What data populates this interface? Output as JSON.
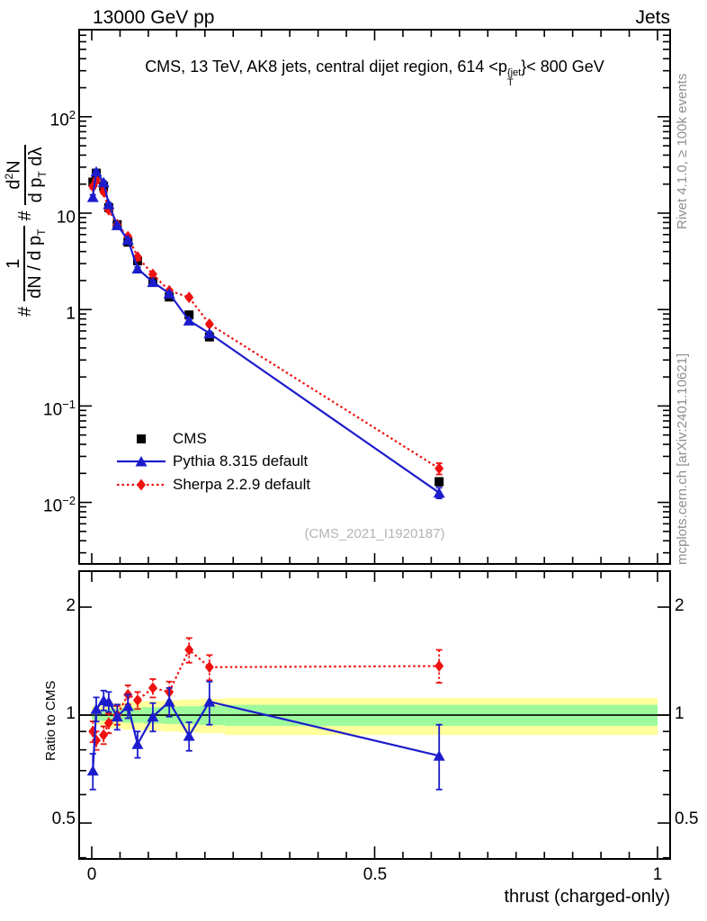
{
  "header": {
    "beam": "13000 GeV pp",
    "process": "Jets"
  },
  "title": {
    "pre": "CMS, 13 TeV, AK8 jets, central dijet region, 614 <p",
    "sup": "{jet",
    "sub": "T",
    "post": "}< 800 GeV"
  },
  "watermark": "(CMS_2021_I1920187)",
  "side_notes": {
    "top_right": "Rivet 4.1.0, ≥ 100k events",
    "bottom_right": "mcplots.cern.ch [arXiv:2401.10621]"
  },
  "ylabel_parts": {
    "hash1": "#",
    "num1": "1",
    "den1_pre": "dN / d p",
    "den1_sub": "T",
    "hash2": "#",
    "num2_pre": "d",
    "num2_sup": "2",
    "num2_post": "N",
    "den2_pre": "d p",
    "den2_sub": "T",
    "den2_post": " dλ"
  },
  "ratio_ylabel": "Ratio to CMS",
  "xlabel": "thrust (charged-only)",
  "legend": [
    {
      "label": "CMS",
      "marker": "square",
      "color": "#000000",
      "line": "none"
    },
    {
      "label": "Pythia 8.315 default",
      "marker": "triangle",
      "color": "#1c1ccd",
      "line": "solid"
    },
    {
      "label": "Sherpa 2.2.9 default",
      "marker": "diamond",
      "color": "#ee1111",
      "line": "dotted"
    }
  ],
  "colors": {
    "cms": "#000000",
    "pythia": "#1c1ccd",
    "sherpa": "#ee1111",
    "band_yellow": "#ffff9c",
    "band_green": "#9cfa9c",
    "frame": "#000000",
    "gray_text": "#8f8f8f",
    "watermark_gray": "#b4b4b4"
  },
  "axes": {
    "main": {
      "x_range": [
        0,
        1
      ],
      "y_log": true,
      "y_range": [
        0.0023,
        800
      ],
      "ytick_labels": [
        {
          "b": "10",
          "e": "2",
          "v": 100
        },
        {
          "b": "10",
          "e": "",
          "v": 10
        },
        {
          "b": "1",
          "e": "",
          "v": 1
        },
        {
          "b": "10",
          "e": "−1",
          "v": 0.1
        },
        {
          "b": "10",
          "e": "−2",
          "v": 0.01
        }
      ]
    },
    "ratio": {
      "y_log": true,
      "y_range": [
        0.397,
        2.52
      ],
      "ytick_labels": [
        {
          "t": "2",
          "v": 2
        },
        {
          "t": "1",
          "v": 1
        },
        {
          "t": "0.5",
          "v": 0.5
        }
      ],
      "xtick_labels": [
        {
          "t": "0",
          "v": 0
        },
        {
          "t": "0.5",
          "v": 0.5
        },
        {
          "t": "1",
          "v": 1
        }
      ]
    }
  },
  "chart_data": [
    {
      "type": "scatter",
      "title": "CMS, 13 TeV, AK8 jets, central dijet region, 614 < pT{jet} < 800 GeV",
      "xlabel": "thrust (charged-only)",
      "ylabel": "# 1/(dN/dpT) # d2N/(dpT dλ)",
      "xlim": [
        0,
        1
      ],
      "ylim": [
        0.0023,
        800
      ],
      "y_log": true,
      "legend_position": "center-left",
      "x": [
        0.002,
        0.008,
        0.021,
        0.03,
        0.045,
        0.064,
        0.081,
        0.108,
        0.137,
        0.172,
        0.208,
        0.614
      ],
      "series": [
        {
          "name": "CMS",
          "marker": "square",
          "line": "none",
          "values": [
            21,
            26,
            19,
            11.4,
            7.6,
            5.0,
            3.2,
            1.95,
            1.35,
            0.88,
            0.52,
            0.0164
          ],
          "yerr": [
            1.2,
            1.2,
            0.9,
            0.5,
            0.33,
            0.22,
            0.14,
            0.09,
            0.06,
            0.04,
            0.025,
            0.0015
          ]
        },
        {
          "name": "Pythia 8.315 default",
          "marker": "triangle",
          "line": "solid",
          "values": [
            14.7,
            27.0,
            20.9,
            12.4,
            7.5,
            5.3,
            2.66,
            1.93,
            1.47,
            0.77,
            0.567,
            0.0126
          ],
          "yerr": [
            0.8,
            0.9,
            0.7,
            0.4,
            0.25,
            0.17,
            0.1,
            0.07,
            0.05,
            0.03,
            0.025,
            0.0016
          ]
        },
        {
          "name": "Sherpa 2.2.9 default",
          "marker": "diamond",
          "line": "dotted",
          "values": [
            18.9,
            22.1,
            16.7,
            10.8,
            7.6,
            5.7,
            3.52,
            2.32,
            1.57,
            1.34,
            0.707,
            0.0225
          ],
          "yerr": [
            1.0,
            1.0,
            0.8,
            0.45,
            0.3,
            0.2,
            0.13,
            0.09,
            0.06,
            0.05,
            0.03,
            0.003
          ]
        }
      ]
    },
    {
      "type": "ratio",
      "ylabel": "Ratio to CMS",
      "ylim": [
        0.397,
        2.52
      ],
      "y_log": true,
      "reference_line": 1,
      "x": [
        0.002,
        0.008,
        0.021,
        0.03,
        0.045,
        0.064,
        0.081,
        0.108,
        0.137,
        0.172,
        0.208,
        0.614
      ],
      "series": [
        {
          "name": "Pythia 8.315 default / CMS",
          "marker": "triangle",
          "line": "solid",
          "values": [
            0.7,
            1.04,
            1.1,
            1.09,
            0.99,
            1.06,
            0.83,
            0.99,
            1.09,
            0.875,
            1.09,
            0.77
          ],
          "lo": [
            0.62,
            0.96,
            1.03,
            1.02,
            0.91,
            0.98,
            0.76,
            0.9,
            0.99,
            0.795,
            0.94,
            0.62
          ],
          "hi": [
            0.78,
            1.12,
            1.17,
            1.16,
            1.07,
            1.14,
            0.9,
            1.08,
            1.19,
            0.955,
            1.24,
            0.94
          ]
        },
        {
          "name": "Sherpa 2.2.9 default / CMS",
          "marker": "diamond",
          "line": "dotted",
          "values": [
            0.9,
            0.85,
            0.88,
            0.95,
            1.0,
            1.14,
            1.1,
            1.19,
            1.16,
            1.52,
            1.36,
            1.37
          ],
          "lo": [
            0.84,
            0.8,
            0.83,
            0.89,
            0.94,
            1.07,
            1.04,
            1.12,
            1.08,
            1.4,
            1.25,
            1.23
          ],
          "hi": [
            0.96,
            0.9,
            0.93,
            1.01,
            1.06,
            1.21,
            1.16,
            1.26,
            1.24,
            1.64,
            1.47,
            1.52
          ]
        }
      ],
      "bands": {
        "yellow": [
          [
            0.0,
            0.004,
            0.95,
            1.055
          ],
          [
            0.004,
            0.016,
            0.94,
            1.06
          ],
          [
            0.016,
            0.026,
            0.935,
            1.07
          ],
          [
            0.026,
            0.055,
            0.92,
            1.08
          ],
          [
            0.055,
            0.09,
            0.91,
            1.09
          ],
          [
            0.09,
            0.125,
            0.905,
            1.095
          ],
          [
            0.125,
            0.155,
            0.9,
            1.1
          ],
          [
            0.155,
            0.19,
            0.895,
            1.105
          ],
          [
            0.19,
            0.235,
            0.89,
            1.11
          ],
          [
            0.235,
            1.0,
            0.88,
            1.115
          ]
        ],
        "green": [
          [
            0.0,
            0.004,
            0.972,
            1.028
          ],
          [
            0.004,
            0.016,
            0.968,
            1.032
          ],
          [
            0.016,
            0.026,
            0.964,
            1.036
          ],
          [
            0.026,
            0.055,
            0.958,
            1.042
          ],
          [
            0.055,
            0.09,
            0.952,
            1.048
          ],
          [
            0.09,
            0.125,
            0.948,
            1.052
          ],
          [
            0.125,
            0.155,
            0.945,
            1.056
          ],
          [
            0.155,
            0.19,
            0.942,
            1.058
          ],
          [
            0.19,
            0.235,
            0.938,
            1.062
          ],
          [
            0.235,
            1.0,
            0.933,
            1.068
          ]
        ]
      }
    }
  ]
}
